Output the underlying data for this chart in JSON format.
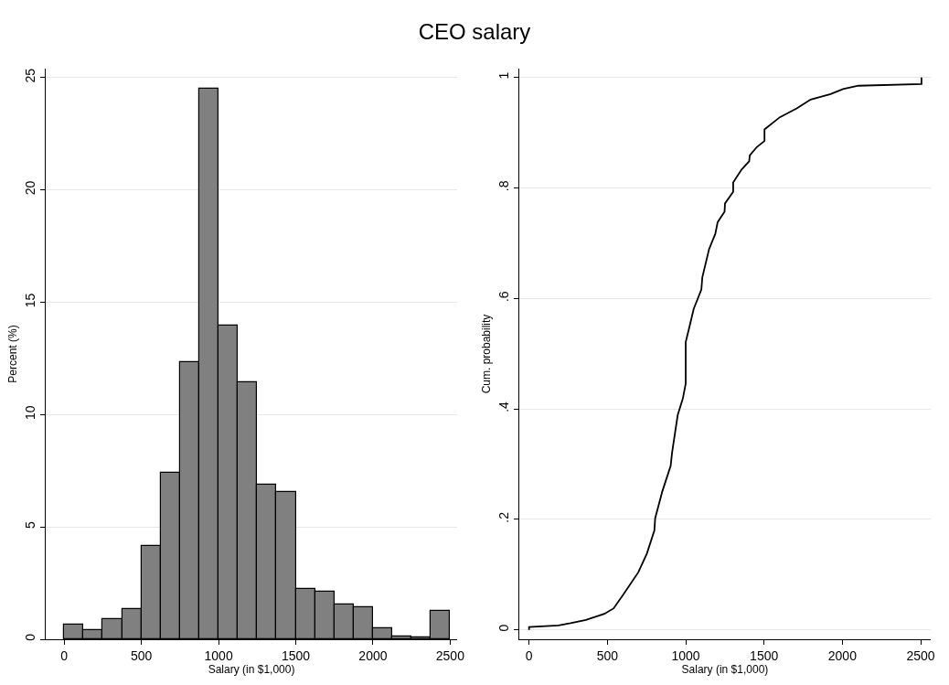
{
  "chart_data": [
    {
      "type": "histogram",
      "title": "CEO salary",
      "xlabel": "Salary (in $1,000)",
      "ylabel": "Percent (%)",
      "bins": [
        0,
        125,
        250,
        375,
        500,
        625,
        750,
        875,
        1000,
        1125,
        1250,
        1375,
        1500,
        1625,
        1750,
        1875,
        2000,
        2125,
        2250,
        2375,
        2500
      ],
      "values": [
        0.65,
        0.4,
        0.9,
        1.33,
        4.16,
        7.41,
        12.35,
        24.52,
        13.98,
        11.44,
        6.87,
        6.55,
        2.24,
        2.12,
        1.53,
        1.44,
        0.49,
        0.11,
        0.08,
        1.28
      ],
      "color": "#808080",
      "xlim": [
        -120,
        2546
      ],
      "xticks": [
        0,
        500,
        1000,
        1500,
        2000,
        2500
      ],
      "ylim": [
        0,
        25.4
      ],
      "yticks": [
        0,
        5,
        10,
        15,
        20,
        25
      ],
      "grid": "y"
    },
    {
      "type": "line",
      "xlabel": "Salary (in $1,000)",
      "ylabel": "Cum. probability",
      "series": [
        {
          "color": "#000000",
          "x": [
            0,
            0,
            187,
            265,
            363,
            481,
            540,
            599,
            697,
            752,
            800,
            805,
            851,
            904,
            913,
            949,
            982,
            1000,
            1000,
            1031,
            1051,
            1100,
            1106,
            1149,
            1189,
            1204,
            1248,
            1251,
            1303,
            1303,
            1356,
            1405,
            1409,
            1454,
            1503,
            1503,
            1601,
            1709,
            1798,
            1925,
            2004,
            2102,
            2505,
            2505
          ],
          "values": [
            0,
            0.005,
            0.008,
            0.012,
            0.018,
            0.029,
            0.039,
            0.063,
            0.104,
            0.138,
            0.18,
            0.202,
            0.251,
            0.297,
            0.321,
            0.389,
            0.419,
            0.446,
            0.521,
            0.557,
            0.581,
            0.616,
            0.638,
            0.689,
            0.717,
            0.738,
            0.757,
            0.772,
            0.793,
            0.81,
            0.833,
            0.848,
            0.859,
            0.874,
            0.885,
            0.906,
            0.928,
            0.944,
            0.96,
            0.97,
            0.979,
            0.985,
            0.988,
            1.0
          ]
        }
      ],
      "xlim": [
        -63,
        2564
      ],
      "xticks": [
        0,
        500,
        1000,
        1500,
        2000,
        2500
      ],
      "ylim": [
        -0.017,
        1.016
      ],
      "yticks": [
        0,
        {
          "value": 0.2,
          "label": ".2"
        },
        {
          "value": 0.4,
          "label": ".4"
        },
        {
          "value": 0.6,
          "label": ".6"
        },
        {
          "value": 0.8,
          "label": ".8"
        },
        1
      ],
      "grid": "y",
      "marker": "none",
      "line_style": "solid"
    }
  ]
}
